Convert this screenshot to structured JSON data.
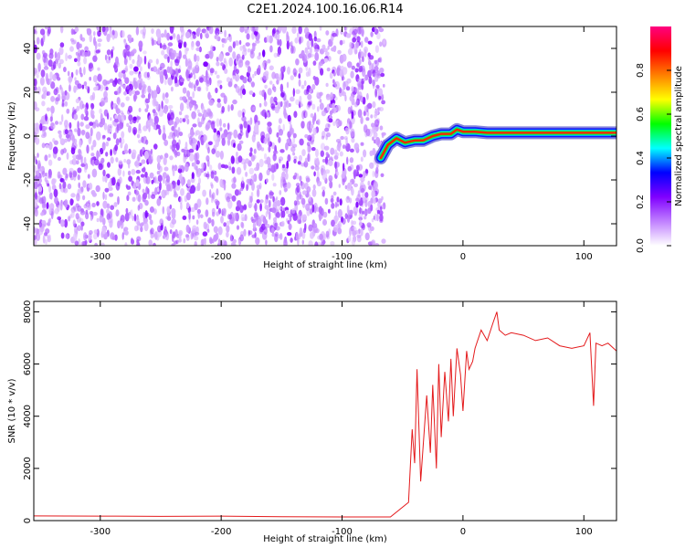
{
  "title": "C2E1.2024.100.16.06.R14",
  "chart_data": [
    {
      "type": "heatmap",
      "xlabel": "Height of straight line (km)",
      "ylabel": "Frequency (Hz)",
      "xlim": [
        -355,
        127
      ],
      "ylim": [
        -50,
        50
      ],
      "x_ticks": [
        -300,
        -200,
        -100,
        0,
        100
      ],
      "y_ticks": [
        -40,
        -20,
        0,
        20,
        40
      ],
      "colorbar": {
        "label": "Normalized spectral amplitude",
        "range": [
          0,
          1
        ],
        "ticks": [
          0,
          0.2,
          0.4,
          0.6,
          0.8
        ],
        "colors": [
          "#ffffff",
          "#c080ff",
          "#8000ff",
          "#0000ff",
          "#00ffff",
          "#00ff00",
          "#ffff00",
          "#ff8000",
          "#ff0000",
          "#ff0080"
        ]
      },
      "noise_region": {
        "x": [
          -355,
          -65
        ],
        "y": [
          -50,
          50
        ],
        "typical_amplitude": 0.15
      },
      "signal_trace": {
        "x": [
          -68,
          -62,
          -55,
          -48,
          -40,
          -33,
          -25,
          -18,
          -10,
          -5,
          0,
          10,
          20,
          40,
          60,
          80,
          100,
          127
        ],
        "y": [
          -10,
          -4,
          -1,
          -3,
          -2,
          -2,
          0,
          1,
          1,
          3,
          2,
          2,
          1.5,
          1.5,
          1.5,
          1.5,
          1.5,
          1.5
        ]
      }
    },
    {
      "type": "line",
      "xlabel": "Height of straight line (km)",
      "ylabel": "SNR (10 * v/v)",
      "xlim": [
        -355,
        127
      ],
      "ylim": [
        0,
        8400
      ],
      "x_ticks": [
        -300,
        -200,
        -100,
        0,
        100
      ],
      "y_ticks": [
        0,
        2000,
        4000,
        6000,
        8000
      ],
      "color": "#e41a1c",
      "series": [
        {
          "x": [
            -355,
            -300,
            -250,
            -200,
            -150,
            -100,
            -60,
            -45,
            -42,
            -40,
            -38,
            -35,
            -30,
            -27,
            -25,
            -22,
            -20,
            -18,
            -15,
            -12,
            -10,
            -8,
            -5,
            -2,
            0,
            3,
            5,
            8,
            10,
            15,
            20,
            25,
            28,
            30,
            35,
            40,
            50,
            60,
            70,
            80,
            90,
            100,
            105,
            108,
            110,
            115,
            120,
            127
          ],
          "y": [
            180,
            170,
            160,
            170,
            150,
            140,
            140,
            700,
            3500,
            2200,
            5800,
            1500,
            4800,
            2600,
            5200,
            2000,
            6000,
            3200,
            5700,
            3800,
            6200,
            4000,
            6600,
            5600,
            4200,
            6500,
            5800,
            6100,
            6600,
            7300,
            6900,
            7600,
            8000,
            7300,
            7100,
            7200,
            7100,
            6900,
            7000,
            6700,
            6600,
            6700,
            7200,
            4400,
            6800,
            6700,
            6800,
            6500
          ]
        }
      ]
    }
  ]
}
